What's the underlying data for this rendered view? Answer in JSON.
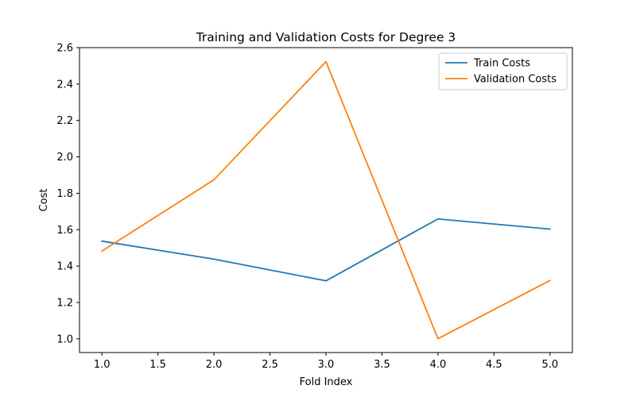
{
  "chart_data": {
    "type": "line",
    "title": "Training and Validation Costs for Degree 3",
    "xlabel": "Fold Index",
    "ylabel": "Cost",
    "x": [
      1,
      2,
      3,
      4,
      5
    ],
    "xlim": [
      0.8,
      5.2
    ],
    "ylim": [
      0.925,
      2.6
    ],
    "xticks": [
      1.0,
      1.5,
      2.0,
      2.5,
      3.0,
      3.5,
      4.0,
      4.5,
      5.0
    ],
    "xtick_labels": [
      "1.0",
      "1.5",
      "2.0",
      "2.5",
      "3.0",
      "3.5",
      "4.0",
      "4.5",
      "5.0"
    ],
    "yticks": [
      1.0,
      1.2,
      1.4,
      1.6,
      1.8,
      2.0,
      2.2,
      2.4,
      2.6
    ],
    "ytick_labels": [
      "1.0",
      "1.2",
      "1.4",
      "1.6",
      "1.8",
      "2.0",
      "2.2",
      "2.4",
      "2.6"
    ],
    "grid": false,
    "legend_position": "top-right",
    "series": [
      {
        "name": "Train Costs",
        "color": "#1f77b4",
        "values": [
          1.537,
          1.438,
          1.319,
          1.659,
          1.603
        ]
      },
      {
        "name": "Validation Costs",
        "color": "#ff7f0e",
        "values": [
          1.482,
          1.874,
          2.523,
          1.001,
          1.321
        ]
      }
    ]
  }
}
